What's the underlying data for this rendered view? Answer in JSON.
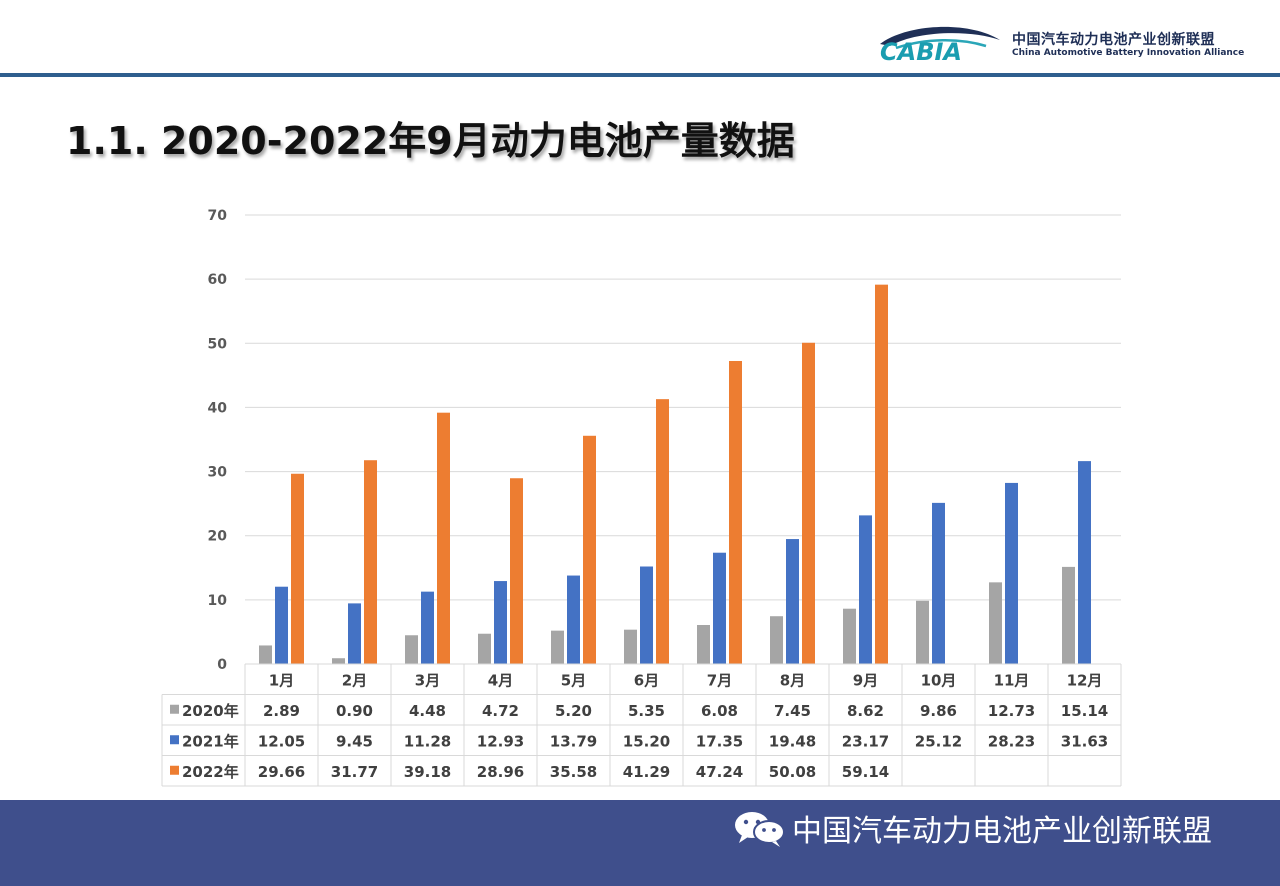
{
  "header": {
    "logo_text": "CABIA",
    "org_name_cn": "中国汽车动力电池产业创新联盟",
    "org_name_en": "China Automotive Battery Innovation Alliance"
  },
  "page": {
    "title": "1.1.  2020-2022年9月动力电池产量数据"
  },
  "footer": {
    "brand": "中国汽车动力电池产业创新联盟",
    "icon": "wechat-icon"
  },
  "chart_data": {
    "type": "bar",
    "title": "",
    "xlabel": "",
    "ylabel": "",
    "ylim": [
      0,
      70
    ],
    "yticks": [
      0,
      10,
      20,
      30,
      40,
      50,
      60,
      70
    ],
    "grid": true,
    "categories": [
      "1月",
      "2月",
      "3月",
      "4月",
      "5月",
      "6月",
      "7月",
      "8月",
      "9月",
      "10月",
      "11月",
      "12月"
    ],
    "series": [
      {
        "name": "2020年",
        "color": "#a5a5a5",
        "values": [
          2.89,
          0.9,
          4.48,
          4.72,
          5.2,
          5.35,
          6.08,
          7.45,
          8.62,
          9.86,
          12.73,
          15.14
        ],
        "labels": [
          "2.89",
          "0.90",
          "4.48",
          "4.72",
          "5.20",
          "5.35",
          "6.08",
          "7.45",
          "8.62",
          "9.86",
          "12.73",
          "15.14"
        ]
      },
      {
        "name": "2021年",
        "color": "#4472c4",
        "values": [
          12.05,
          9.45,
          11.28,
          12.93,
          13.79,
          15.2,
          17.35,
          19.48,
          23.17,
          25.12,
          28.23,
          31.63
        ],
        "labels": [
          "12.05",
          "9.45",
          "11.28",
          "12.93",
          "13.79",
          "15.20",
          "17.35",
          "19.48",
          "23.17",
          "25.12",
          "28.23",
          "31.63"
        ]
      },
      {
        "name": "2022年",
        "color": "#ed7d31",
        "values": [
          29.66,
          31.77,
          39.18,
          28.96,
          35.58,
          41.29,
          47.24,
          50.08,
          59.14,
          null,
          null,
          null
        ],
        "labels": [
          "29.66",
          "31.77",
          "39.18",
          "28.96",
          "35.58",
          "41.29",
          "47.24",
          "50.08",
          "59.14",
          "",
          "",
          ""
        ]
      }
    ],
    "data_table": true
  }
}
